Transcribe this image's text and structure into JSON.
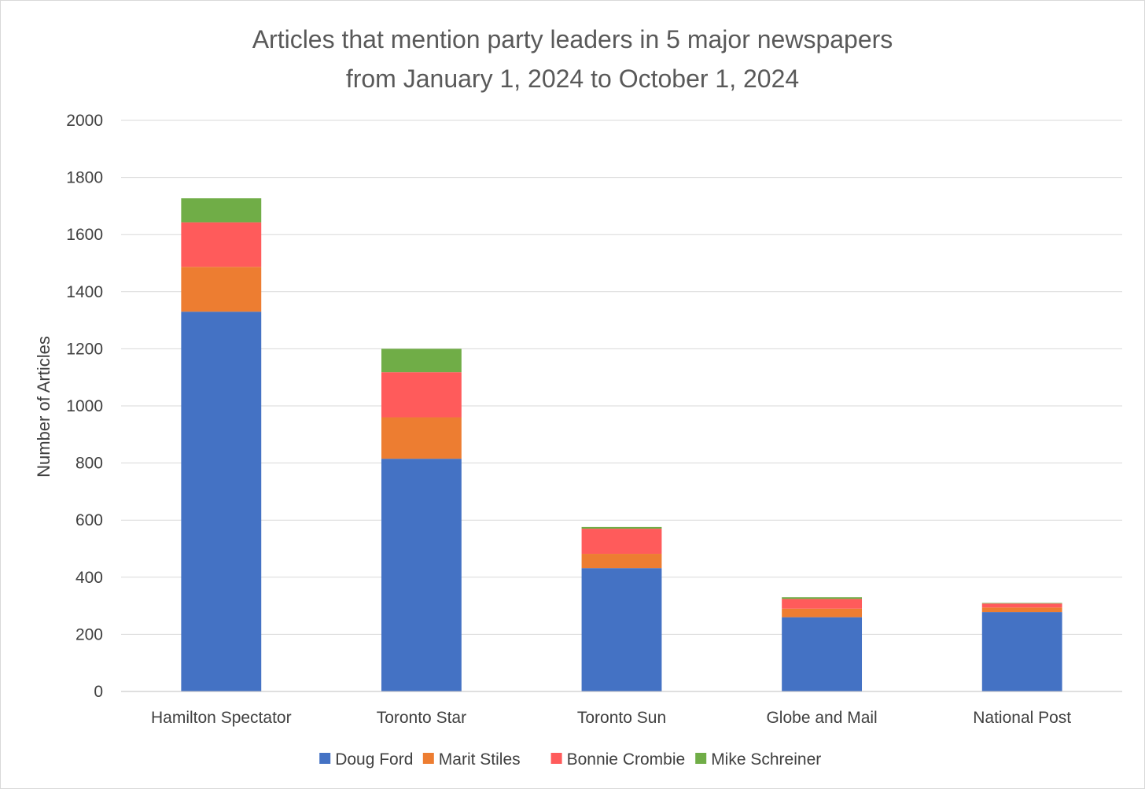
{
  "chart_data": {
    "type": "bar",
    "stacked": true,
    "title": [
      "Articles that mention party leaders in 5 major newspapers",
      "from January 1, 2024 to October 1, 2024"
    ],
    "xlabel": "",
    "ylabel": "Number of Articles",
    "ylim": [
      0,
      2000
    ],
    "yticks": [
      0,
      200,
      400,
      600,
      800,
      1000,
      1200,
      1400,
      1600,
      1800,
      2000
    ],
    "grid": true,
    "legend_position": "bottom",
    "categories": [
      "Hamilton Spectator",
      "Toronto Star",
      "Toronto Sun",
      "Globe and Mail",
      "National Post"
    ],
    "series": [
      {
        "name": "Doug Ford",
        "color": "#4472c4",
        "values": [
          1330,
          815,
          432,
          260,
          278
        ]
      },
      {
        "name": "Marit Stiles",
        "color": "#ed7d31",
        "values": [
          157,
          145,
          50,
          30,
          16
        ]
      },
      {
        "name": "Bonnie Crombie",
        "color": "#ff5b5b",
        "values": [
          156,
          158,
          88,
          34,
          14
        ]
      },
      {
        "name": "Mike Schreiner",
        "color": "#70ad47",
        "values": [
          84,
          82,
          6,
          6,
          2
        ]
      }
    ]
  }
}
